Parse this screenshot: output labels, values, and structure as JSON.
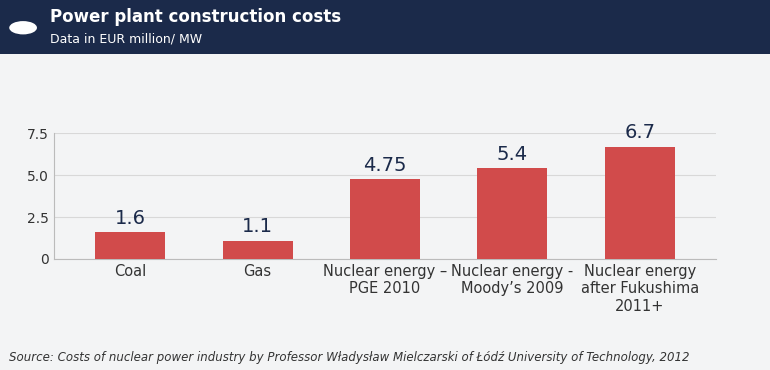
{
  "chart_data": {
    "type": "bar",
    "title": "Power plant construction costs",
    "subtitle": "Data in EUR million/ MW",
    "categories": [
      "Coal",
      "Gas",
      "Nuclear energy – PGE 2010",
      "Nuclear energy - Moody’s 2009",
      "Nuclear energy after Fukushima 2011+"
    ],
    "values": [
      1.6,
      1.1,
      4.75,
      5.4,
      6.7
    ],
    "color": "#d14b4b",
    "ylim": [
      0,
      7.5
    ],
    "yticks": [
      0,
      2.5,
      5.0,
      7.5
    ],
    "grid": true,
    "data_labels": true,
    "source": "Source: Costs of nuclear power industry by Professor Władysław Mielczarski of Łódź University of Technology, 2012"
  }
}
